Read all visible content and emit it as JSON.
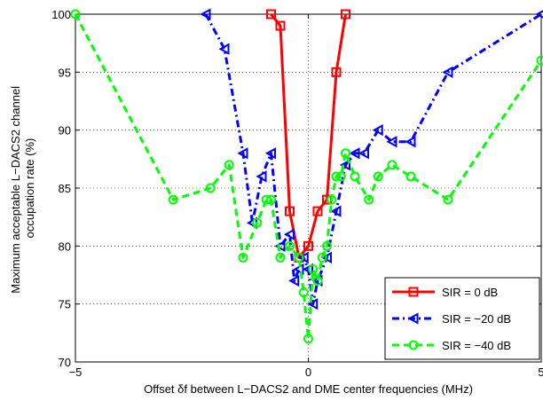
{
  "chart_data": {
    "type": "line",
    "xlabel": "Offset δf between L−DACS2 and DME center frequencies (MHz)",
    "ylabel_lines": [
      "Maximum acceptable L−DACS2 channel",
      "occupation rate (%)"
    ],
    "xlim": [
      -5,
      5
    ],
    "ylim": [
      70,
      100
    ],
    "x_ticks": [
      -5,
      0,
      5
    ],
    "x_tick_labels": [
      "−5",
      "0",
      "5"
    ],
    "y_ticks": [
      70,
      75,
      80,
      85,
      90,
      95,
      100
    ],
    "y_tick_labels": [
      "70",
      "75",
      "80",
      "85",
      "90",
      "95",
      "100"
    ],
    "grid": true,
    "legend_position": "bottom-right",
    "series": [
      {
        "name": "SIR = 0 dB",
        "color": "#ff0000",
        "dash": "solid",
        "marker": "square",
        "x": [
          -0.8,
          -0.6,
          -0.4,
          -0.2,
          0.0,
          0.2,
          0.4,
          0.6,
          0.8
        ],
        "y": [
          100,
          99,
          83,
          79,
          80,
          83,
          84,
          95,
          100
        ]
      },
      {
        "name": "SIR = −20 dB",
        "color": "#0000ff",
        "dash": "dashdot",
        "marker": "triangle-left",
        "x": [
          -2.2,
          -1.8,
          -1.4,
          -1.2,
          -1.0,
          -0.8,
          -0.6,
          -0.4,
          -0.3,
          -0.2,
          -0.1,
          0.0,
          0.1,
          0.2,
          0.4,
          0.6,
          0.8,
          1.0,
          1.2,
          1.5,
          1.8,
          2.2,
          3.0,
          5.0
        ],
        "y": [
          100,
          97,
          88,
          82,
          86,
          88,
          80,
          81,
          77,
          78,
          79,
          78,
          75,
          77,
          79,
          83,
          87,
          88,
          88,
          90,
          89,
          89,
          95,
          100
        ]
      },
      {
        "name": "SIR = −40 dB",
        "color": "#00ff00",
        "dash": "dashed",
        "marker": "circle",
        "x": [
          -5.0,
          -2.9,
          -2.1,
          -1.7,
          -1.4,
          -1.1,
          -0.9,
          -0.8,
          -0.6,
          -0.4,
          -0.2,
          -0.1,
          0.0,
          0.1,
          0.2,
          0.3,
          0.4,
          0.5,
          0.6,
          0.7,
          0.8,
          1.0,
          1.3,
          1.5,
          1.8,
          2.2,
          3.0,
          5.0
        ],
        "y": [
          100,
          84,
          85,
          87,
          79,
          82,
          84,
          84,
          79,
          80,
          79,
          76,
          72,
          78,
          77,
          79,
          80,
          84,
          86,
          86,
          88,
          86,
          84,
          86,
          87,
          86,
          84,
          96
        ]
      }
    ]
  }
}
